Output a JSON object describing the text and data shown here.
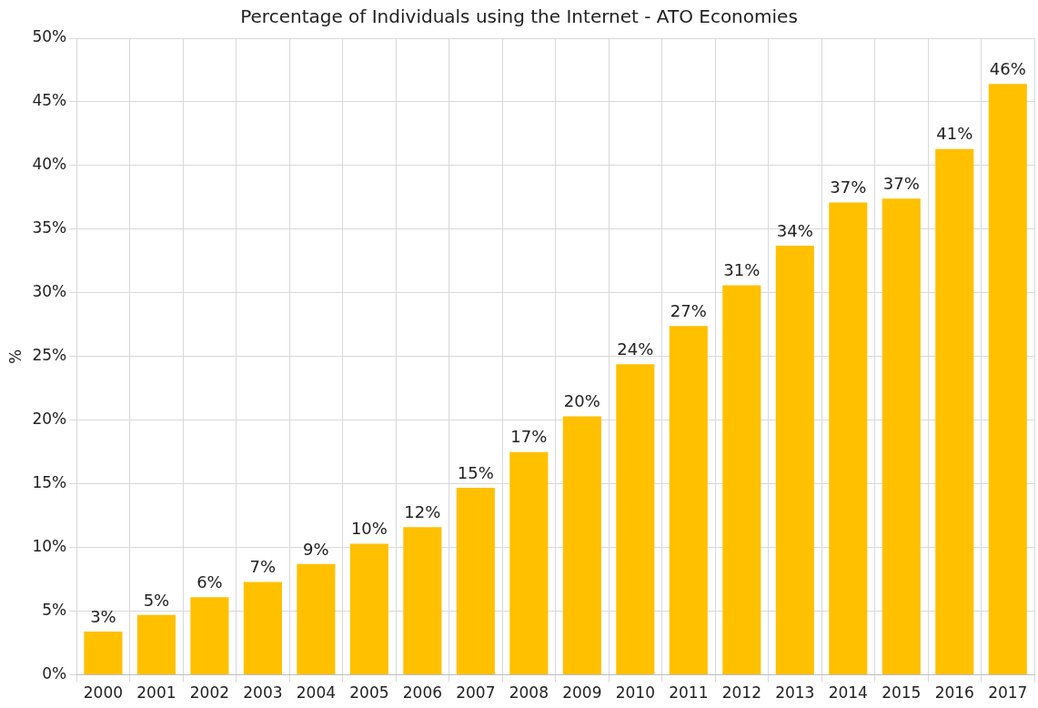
{
  "chart_data": {
    "type": "bar",
    "title": "Percentage of Individuals using the Internet - ATO Economies",
    "ylabel": "%",
    "categories": [
      "2000",
      "2001",
      "2002",
      "2003",
      "2004",
      "2005",
      "2006",
      "2007",
      "2008",
      "2009",
      "2010",
      "2011",
      "2012",
      "2013",
      "2014",
      "2015",
      "2016",
      "2017"
    ],
    "values": [
      3.4,
      4.7,
      6.1,
      7.3,
      8.7,
      10.3,
      11.6,
      14.7,
      17.5,
      20.3,
      24.4,
      27.4,
      30.6,
      33.7,
      37.1,
      37.4,
      41.3,
      46.4
    ],
    "value_labels": [
      "3%",
      "5%",
      "6%",
      "7%",
      "9%",
      "10%",
      "12%",
      "15%",
      "17%",
      "20%",
      "24%",
      "27%",
      "31%",
      "34%",
      "37%",
      "37%",
      "41%",
      "46%"
    ],
    "color": "#ffc000",
    "ylim": [
      0,
      50
    ],
    "yticks": [
      {
        "value": 0,
        "label": "0%"
      },
      {
        "value": 5,
        "label": "5%"
      },
      {
        "value": 10,
        "label": "10%"
      },
      {
        "value": 15,
        "label": "15%"
      },
      {
        "value": 20,
        "label": "20%"
      },
      {
        "value": 25,
        "label": "25%"
      },
      {
        "value": 30,
        "label": "30%"
      },
      {
        "value": 35,
        "label": "35%"
      },
      {
        "value": 40,
        "label": "40%"
      },
      {
        "value": 45,
        "label": "45%"
      },
      {
        "value": 50,
        "label": "50%"
      }
    ],
    "grid": true,
    "legend": false
  }
}
